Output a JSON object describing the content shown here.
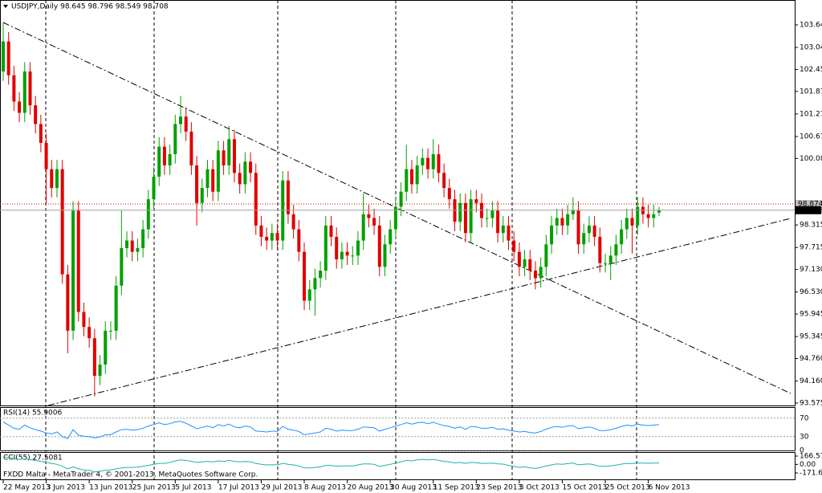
{
  "chart_data": {
    "type": "candlestick",
    "title": "USDJPY,Daily  98.645 98.796 98.549 98.708",
    "categories": [
      "22 May 2013",
      null,
      null,
      null,
      null,
      null,
      null,
      null,
      "3 Jun 2013",
      null,
      null,
      null,
      null,
      null,
      null,
      null,
      "13 Jun 2013",
      null,
      null,
      null,
      null,
      null,
      null,
      null,
      "25 Jun 2013",
      null,
      null,
      null,
      null,
      null,
      null,
      null,
      "5 Jul 2013",
      null,
      null,
      null,
      null,
      null,
      null,
      null,
      "17 Jul 2013",
      null,
      null,
      null,
      null,
      null,
      null,
      null,
      "29 Jul 2013",
      null,
      null,
      null,
      null,
      null,
      null,
      null,
      "8 Aug 2013",
      null,
      null,
      null,
      null,
      null,
      null,
      null,
      "20 Aug 2013",
      null,
      null,
      null,
      null,
      null,
      null,
      null,
      "30 Aug 2013",
      null,
      null,
      null,
      null,
      null,
      null,
      null,
      "11 Sep 2013",
      null,
      null,
      null,
      null,
      null,
      null,
      null,
      "23 Sep 2013",
      null,
      null,
      null,
      null,
      null,
      null,
      null,
      "3 Oct 2013",
      null,
      null,
      null,
      null,
      null,
      null,
      null,
      "15 Oct 2013",
      null,
      null,
      null,
      null,
      null,
      null,
      null,
      "25 Oct 2013",
      null,
      null,
      null,
      null,
      null,
      null,
      null,
      "6 Nov 2013",
      null,
      null
    ],
    "open": [
      102.4,
      103.2,
      102.3,
      101.6,
      101.3,
      102.4,
      101.5,
      101.0,
      100.5,
      99.8,
      99.3,
      99.8,
      97.0,
      95.5,
      98.7,
      96.0,
      95.6,
      95.3,
      94.3,
      94.6,
      95.5,
      95.5,
      96.7,
      97.7,
      97.9,
      97.6,
      97.7,
      98.2,
      99.0,
      99.6,
      100.4,
      99.9,
      100.2,
      101.0,
      101.2,
      100.8,
      99.9,
      98.9,
      99.3,
      99.8,
      99.2,
      100.3,
      99.9,
      100.6,
      99.7,
      99.4,
      100.0,
      99.7,
      98.3,
      98.0,
      97.9,
      98.1,
      97.9,
      99.5,
      98.6,
      98.2,
      97.6,
      96.3,
      96.6,
      96.9,
      97.1,
      98.3,
      98.0,
      97.4,
      97.6,
      97.5,
      97.5,
      97.9,
      98.6,
      98.5,
      98.3,
      97.2,
      97.8,
      98.2,
      98.8,
      99.2,
      99.8,
      99.4,
      99.9,
      100.1,
      99.8,
      100.2,
      99.7,
      99.3,
      99.0,
      98.4,
      98.9,
      98.1,
      99.0,
      98.9,
      98.5,
      98.5,
      98.7,
      98.1,
      98.3,
      97.9,
      97.6,
      97.2,
      97.4,
      97.1,
      96.9,
      97.2,
      97.8,
      98.3,
      98.5,
      98.3,
      98.6,
      98.7,
      97.8,
      98.1,
      98.3,
      98.0,
      97.3,
      97.3,
      97.5,
      97.8,
      98.2,
      98.5,
      98.3,
      98.8,
      98.6,
      98.5,
      98.645
    ],
    "high": [
      103.7,
      103.45,
      102.55,
      101.85,
      102.65,
      102.65,
      101.75,
      101.25,
      100.75,
      100.05,
      100.05,
      100.05,
      97.25,
      98.95,
      98.95,
      96.25,
      95.85,
      95.55,
      94.85,
      95.75,
      95.75,
      96.95,
      98.7,
      98.15,
      98.15,
      97.95,
      98.45,
      99.25,
      99.85,
      100.65,
      100.65,
      100.45,
      101.25,
      101.75,
      101.45,
      101.05,
      100.15,
      99.55,
      100.05,
      100.05,
      100.55,
      100.55,
      100.95,
      100.85,
      99.95,
      100.25,
      100.25,
      99.95,
      98.55,
      98.25,
      98.35,
      98.35,
      99.75,
      99.75,
      98.85,
      98.45,
      97.85,
      96.85,
      97.15,
      97.35,
      98.55,
      98.55,
      98.25,
      97.85,
      97.85,
      97.75,
      98.15,
      99.15,
      98.85,
      98.75,
      98.55,
      98.05,
      98.45,
      99.05,
      99.45,
      100.45,
      100.05,
      100.15,
      100.35,
      100.35,
      100.6,
      100.45,
      99.95,
      99.55,
      99.25,
      99.15,
      99.15,
      99.25,
      99.25,
      99.15,
      98.75,
      98.95,
      98.95,
      98.55,
      98.55,
      98.15,
      97.85,
      97.65,
      97.65,
      97.35,
      97.45,
      98.05,
      98.55,
      98.75,
      98.75,
      98.85,
      99.05,
      98.95,
      98.35,
      98.55,
      98.55,
      98.25,
      97.55,
      97.75,
      98.05,
      98.45,
      98.75,
      98.75,
      99.05,
      99.05,
      98.85,
      98.85,
      98.796
    ],
    "low": [
      102.15,
      102.05,
      101.35,
      101.05,
      101.05,
      101.25,
      100.75,
      100.25,
      98.9,
      99.05,
      99.05,
      96.75,
      94.9,
      95.25,
      95.75,
      95.35,
      95.05,
      93.75,
      94.05,
      94.35,
      95.25,
      95.25,
      96.45,
      97.45,
      97.35,
      97.35,
      97.45,
      97.95,
      98.75,
      99.35,
      99.65,
      99.65,
      99.95,
      100.75,
      100.55,
      99.65,
      98.3,
      98.65,
      99.05,
      98.95,
      98.95,
      99.65,
      99.65,
      99.45,
      99.15,
      99.15,
      99.45,
      98.05,
      97.75,
      97.65,
      97.65,
      97.65,
      97.65,
      98.35,
      97.95,
      97.35,
      96.05,
      96.05,
      95.9,
      96.65,
      96.85,
      97.75,
      97.15,
      97.15,
      97.25,
      97.25,
      97.25,
      97.65,
      98.25,
      98.05,
      96.95,
      96.95,
      97.55,
      97.95,
      98.55,
      98.95,
      99.15,
      99.15,
      99.65,
      99.55,
      99.55,
      99.45,
      99.05,
      98.75,
      98.15,
      98.15,
      97.85,
      97.85,
      98.65,
      98.25,
      98.25,
      98.25,
      97.85,
      97.85,
      97.65,
      97.35,
      96.95,
      96.95,
      96.85,
      96.6,
      96.65,
      96.95,
      97.55,
      98.05,
      98.05,
      98.05,
      98.45,
      97.55,
      97.55,
      97.85,
      97.75,
      97.05,
      97.05,
      96.85,
      97.25,
      97.55,
      97.95,
      97.55,
      98.05,
      98.35,
      98.25,
      98.25,
      98.549
    ],
    "close": [
      103.2,
      102.3,
      101.6,
      101.3,
      102.4,
      101.5,
      101.0,
      100.5,
      99.8,
      99.3,
      99.8,
      97.0,
      95.5,
      98.7,
      96.0,
      95.6,
      95.3,
      94.3,
      94.6,
      95.5,
      95.5,
      96.7,
      97.7,
      97.9,
      97.6,
      97.7,
      98.2,
      99.0,
      99.6,
      100.4,
      99.9,
      100.2,
      101.0,
      101.2,
      100.8,
      99.9,
      98.9,
      99.3,
      99.8,
      99.2,
      100.3,
      99.9,
      100.6,
      99.7,
      99.4,
      100.0,
      99.7,
      98.3,
      98.0,
      97.9,
      98.1,
      97.9,
      99.5,
      98.6,
      98.2,
      97.6,
      96.3,
      96.6,
      96.9,
      97.1,
      98.3,
      98.0,
      97.4,
      97.6,
      97.5,
      97.5,
      97.9,
      98.6,
      98.5,
      98.3,
      97.2,
      97.8,
      98.2,
      98.8,
      99.2,
      99.8,
      99.4,
      99.9,
      100.1,
      99.8,
      100.2,
      99.7,
      99.3,
      99.0,
      98.4,
      98.9,
      98.1,
      99.0,
      98.9,
      98.5,
      98.5,
      98.7,
      98.1,
      98.3,
      97.9,
      97.6,
      97.2,
      97.4,
      97.1,
      96.9,
      97.2,
      97.8,
      98.3,
      98.5,
      98.3,
      98.6,
      98.7,
      97.8,
      98.1,
      98.3,
      98.0,
      97.3,
      97.3,
      97.5,
      97.8,
      98.2,
      98.5,
      98.3,
      98.8,
      98.6,
      98.5,
      98.6,
      98.708
    ],
    "up_color": "#00a000",
    "down_color": "#e00000",
    "ylim": [
      93.51,
      104.26
    ],
    "yticks": [
      {
        "value": 103.64,
        "label": "103.640"
      },
      {
        "value": 103.04,
        "label": "103.040"
      },
      102.455,
      {
        "value": 101.87,
        "label": "101.870"
      },
      {
        "value": 101.27,
        "label": "101.270"
      },
      {
        "value": 100.67,
        "label": "100.670"
      },
      100.085,
      98.315,
      97.715,
      {
        "value": 97.13,
        "label": "97.130"
      },
      {
        "value": 96.53,
        "label": "96.530"
      },
      95.945,
      95.345,
      {
        "value": 94.76,
        "label": "94.760"
      },
      {
        "value": 94.16,
        "label": "94.160"
      },
      93.575
    ],
    "price_labels": [
      98.874,
      98.708
    ],
    "indicators": [
      {
        "type": "line",
        "title": "RSI(14) 55.9006",
        "color": "#1e90ff",
        "ylim": [
          0,
          92.2
        ],
        "yticks": [
          70,
          30,
          0
        ],
        "values": [
          62,
          55,
          48,
          46,
          55,
          49,
          45,
          42,
          38,
          36,
          40,
          30,
          26,
          45,
          33,
          31,
          30,
          27,
          29,
          34,
          34,
          40,
          45,
          46,
          44,
          45,
          48,
          53,
          56,
          60,
          56,
          58,
          62,
          63,
          59,
          53,
          47,
          50,
          53,
          49,
          56,
          53,
          57,
          51,
          49,
          53,
          51,
          42,
          41,
          40,
          42,
          41,
          52,
          46,
          44,
          41,
          34,
          36,
          38,
          40,
          48,
          46,
          42,
          44,
          43,
          43,
          46,
          51,
          50,
          49,
          42,
          46,
          49,
          53,
          56,
          60,
          57,
          60,
          61,
          58,
          61,
          57,
          54,
          52,
          48,
          51,
          46,
          52,
          51,
          48,
          48,
          50,
          46,
          47,
          44,
          42,
          40,
          41,
          39,
          38,
          41,
          46,
          50,
          52,
          50,
          53,
          54,
          47,
          49,
          51,
          48,
          43,
          43,
          45,
          48,
          52,
          55,
          53,
          57,
          55,
          54,
          55,
          55.9006
        ]
      },
      {
        "type": "line",
        "title": "CCI(55) 27.5081",
        "color": "#20b2aa",
        "ylim": [
          -316.6,
          231
        ],
        "yticks": [
          166.5739,
          {
            "value": 0,
            "label": "0.00"
          },
          -171.6533
        ],
        "values": [
          150,
          140,
          120,
          100,
          110,
          95,
          80,
          60,
          40,
          20,
          0,
          -40,
          -90,
          -50,
          -90,
          -110,
          -120,
          -150,
          -140,
          -120,
          -110,
          -90,
          -70,
          -60,
          -60,
          -55,
          -40,
          -20,
          0,
          20,
          20,
          40,
          70,
          90,
          80,
          60,
          40,
          50,
          60,
          50,
          70,
          60,
          80,
          60,
          50,
          60,
          50,
          20,
          0,
          -10,
          -5,
          -10,
          20,
          0,
          -10,
          -30,
          -70,
          -70,
          -60,
          -50,
          -20,
          -20,
          -40,
          -30,
          -30,
          -30,
          -10,
          10,
          10,
          0,
          -40,
          -20,
          0,
          30,
          50,
          80,
          70,
          90,
          100,
          90,
          100,
          80,
          60,
          50,
          30,
          40,
          20,
          40,
          35,
          20,
          20,
          25,
          10,
          5,
          -20,
          -40,
          -60,
          -50,
          -70,
          -80,
          -60,
          -30,
          -10,
          10,
          0,
          15,
          25,
          -10,
          0,
          10,
          -10,
          -40,
          -40,
          -30,
          -15,
          5,
          20,
          15,
          30,
          25,
          22,
          25,
          27.5081
        ]
      }
    ],
    "footer": "FXDD Malta - MetaTrader 4, © 2001-2013, MetaQuotes Software Corp."
  }
}
